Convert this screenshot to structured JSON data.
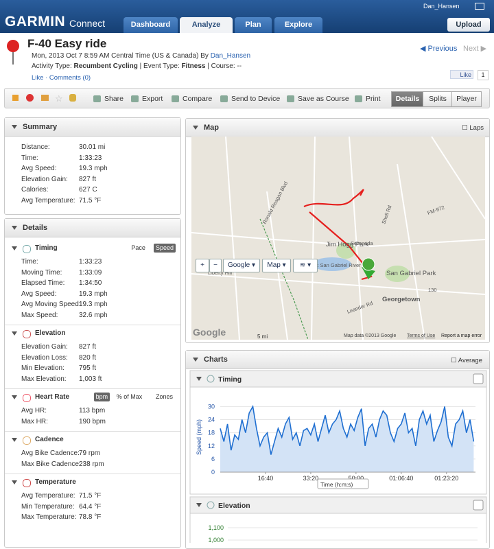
{
  "header": {
    "logo": "GARMIN",
    "logo_sub": "Connect",
    "user": "Dan_Hansen",
    "upload": "Upload",
    "tabs": [
      "Dashboard",
      "Analyze",
      "Plan",
      "Explore"
    ],
    "active_tab": 1
  },
  "activity": {
    "title": "F-40 Easy ride",
    "date": "Mon, 2013 Oct 7 8:59 AM Central Time (US & Canada) By",
    "author": "Dan_Hansen",
    "type_label": "Activity Type:",
    "type": "Recumbent Cycling",
    "event_label": "| Event Type:",
    "event": "Fitness",
    "course": "| Course: --",
    "like": "Like",
    "comments": "Comments (0)",
    "prev": "Previous",
    "next": "Next",
    "fb_like": "Like",
    "fb_count": "1"
  },
  "toolbar": {
    "actions": [
      "Share",
      "Export",
      "Compare",
      "Send to Device",
      "Save as Course",
      "Print"
    ],
    "views": [
      "Details",
      "Splits",
      "Player"
    ],
    "active_view": 0
  },
  "summary": {
    "title": "Summary",
    "rows": [
      [
        "Distance:",
        "30.01 mi"
      ],
      [
        "Time:",
        "1:33:23"
      ],
      [
        "Avg Speed:",
        "19.3 mph"
      ],
      [
        "Elevation Gain:",
        "827 ft"
      ],
      [
        "Calories:",
        "627 C"
      ],
      [
        "Avg Temperature:",
        "71.5 °F"
      ]
    ]
  },
  "details": {
    "title": "Details",
    "sections": [
      {
        "title": "Timing",
        "options": [
          "Pace",
          "Speed"
        ],
        "active_option": 1,
        "rows": [
          [
            "Time:",
            "1:33:23"
          ],
          [
            "Moving Time:",
            "1:33:09"
          ],
          [
            "Elapsed Time:",
            "1:34:50"
          ],
          [
            "Avg Speed:",
            "19.3 mph"
          ],
          [
            "Avg Moving Speed:",
            "19.3 mph"
          ],
          [
            "Max Speed:",
            "32.6 mph"
          ]
        ]
      },
      {
        "title": "Elevation",
        "rows": [
          [
            "Elevation Gain:",
            "827 ft"
          ],
          [
            "Elevation Loss:",
            "820 ft"
          ],
          [
            "Min Elevation:",
            "795 ft"
          ],
          [
            "Max Elevation:",
            "1,003 ft"
          ]
        ]
      },
      {
        "title": "Heart Rate",
        "options": [
          "bpm",
          "% of Max",
          "Zones"
        ],
        "active_option": 0,
        "rows": [
          [
            "Avg HR:",
            "113 bpm"
          ],
          [
            "Max HR:",
            "190 bpm"
          ]
        ]
      },
      {
        "title": "Cadence",
        "rows": [
          [
            "Avg Bike Cadence:",
            "79 rpm"
          ],
          [
            "Max Bike Cadence:",
            "238 rpm"
          ]
        ]
      },
      {
        "title": "Temperature",
        "rows": [
          [
            "Avg Temperature:",
            "71.5 °F"
          ],
          [
            "Min Temperature:",
            "64.4 °F"
          ],
          [
            "Max Temperature:",
            "78.8 °F"
          ]
        ]
      }
    ]
  },
  "map": {
    "title": "Map",
    "laps": "Laps",
    "controls": [
      "Google",
      "Map"
    ],
    "labels": [
      "Ronald Reagan Blvd",
      "Serenada",
      "Shell Rd",
      "FM-972",
      "Jim Hogg Park",
      "North Fork San Gabriel River",
      "San Gabriel Park",
      "Georgetown",
      "Liberty Hill",
      "Leander Rd",
      "130"
    ],
    "scale": "5 mi",
    "google": "Google",
    "attribution": "Map data ©2013 Google",
    "terms": "Terms of Use",
    "report": "Report a map error"
  },
  "charts": {
    "title": "Charts",
    "average": "Average"
  },
  "chart_data": [
    {
      "type": "line",
      "title": "Timing",
      "y_label": "Speed (mph)",
      "x_label": "Time (h:m:s)",
      "color": "#1f6fd1",
      "x": [
        0,
        80,
        160,
        240,
        320,
        400,
        480,
        560,
        640,
        720,
        800,
        880,
        960,
        1040,
        1120,
        1200,
        1280,
        1360,
        1440,
        1520,
        1600,
        1680,
        1760,
        1840,
        1920,
        2000,
        2080,
        2160,
        2240,
        2320,
        2400,
        2480,
        2560,
        2640,
        2720,
        2800,
        2880,
        2960,
        3040,
        3120,
        3200,
        3280,
        3360,
        3440,
        3520,
        3600,
        3680,
        3760,
        3840,
        3920,
        4000,
        4080,
        4160,
        4240,
        4320,
        4400,
        4480,
        4560,
        4640,
        4720,
        4800,
        4880,
        4960,
        5040,
        5120,
        5200,
        5280,
        5360,
        5440,
        5520,
        5600
      ],
      "values": [
        20,
        14,
        22,
        10,
        17,
        15,
        24,
        18,
        27,
        30,
        20,
        12,
        16,
        18,
        8,
        14,
        20,
        16,
        22,
        25,
        15,
        18,
        12,
        19,
        20,
        17,
        22,
        14,
        20,
        26,
        18,
        22,
        24,
        28,
        20,
        16,
        22,
        19,
        25,
        29,
        12,
        20,
        22,
        16,
        24,
        28,
        26,
        18,
        14,
        20,
        22,
        27,
        18,
        20,
        12,
        24,
        28,
        22,
        26,
        14,
        19,
        23,
        30,
        16,
        12,
        22,
        24,
        28,
        18,
        24,
        14
      ],
      "xlim": [
        0,
        5640
      ],
      "ylim": [
        0,
        32
      ],
      "yticks": [
        0,
        6,
        12,
        18,
        24,
        30
      ],
      "xticks": [
        {
          "value": 1000,
          "label": "16:40"
        },
        {
          "value": 2000,
          "label": "33:20"
        },
        {
          "value": 3000,
          "label": "50:00"
        },
        {
          "value": 4000,
          "label": "01:06:40"
        },
        {
          "value": 5000,
          "label": "01:23:20"
        }
      ],
      "grid": true
    },
    {
      "type": "area",
      "title": "Elevation",
      "ylim": [
        700,
        1150
      ],
      "yticks": [
        {
          "value": 1000,
          "label": "1,000"
        },
        {
          "value": 1100,
          "label": "1,100"
        }
      ]
    }
  ]
}
